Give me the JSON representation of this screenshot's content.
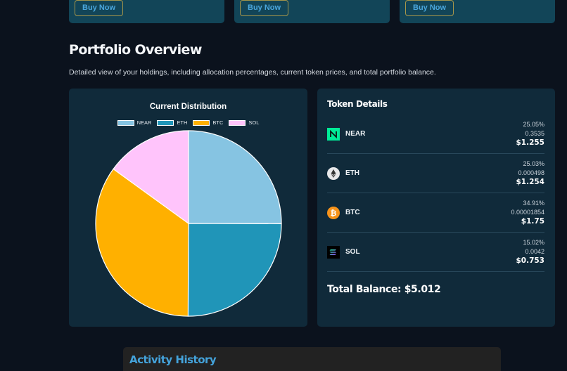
{
  "top_cards": [
    {
      "button_label": "Buy Now"
    },
    {
      "button_label": "Buy Now"
    },
    {
      "button_label": "Buy Now"
    }
  ],
  "portfolio": {
    "title": "Portfolio Overview",
    "description": "Detailed view of your holdings, including allocation percentages, current token prices, and total portfolio balance."
  },
  "chart": {
    "title": "Current Distribution",
    "legend": [
      {
        "label": "NEAR",
        "color": "#86c4e2"
      },
      {
        "label": "ETH",
        "color": "#2095b8"
      },
      {
        "label": "BTC",
        "color": "#ffb000"
      },
      {
        "label": "SOL",
        "color": "#ffc4fb"
      }
    ]
  },
  "chart_data": {
    "type": "pie",
    "title": "Current Distribution",
    "categories": [
      "NEAR",
      "ETH",
      "BTC",
      "SOL"
    ],
    "values": [
      25.05,
      25.03,
      34.91,
      15.02
    ],
    "colors": [
      "#86c4e2",
      "#2095b8",
      "#ffb000",
      "#ffc4fb"
    ],
    "legend_position": "top",
    "start_angle": "12 o'clock, clockwise"
  },
  "token_details": {
    "title": "Token Details",
    "tokens": [
      {
        "symbol": "NEAR",
        "icon": "near-logo-icon",
        "percentage": "25.05%",
        "amount": "0.3535",
        "value": "$1.255"
      },
      {
        "symbol": "ETH",
        "icon": "ethereum-logo-icon",
        "percentage": "25.03%",
        "amount": "0.000498",
        "value": "$1.254"
      },
      {
        "symbol": "BTC",
        "icon": "bitcoin-logo-icon",
        "percentage": "34.91%",
        "amount": "0.00001854",
        "value": "$1.75"
      },
      {
        "symbol": "SOL",
        "icon": "solana-logo-icon",
        "percentage": "15.02%",
        "amount": "0.0042",
        "value": "$0.753"
      }
    ],
    "total_label": "Total Balance: $5.012"
  },
  "activity": {
    "title": "Activity History"
  },
  "colors": {
    "background": "#0b121d",
    "panel": "#102a3a",
    "top_card": "#124558",
    "accent_blue": "#44a3db",
    "button_border": "#a6964a"
  }
}
